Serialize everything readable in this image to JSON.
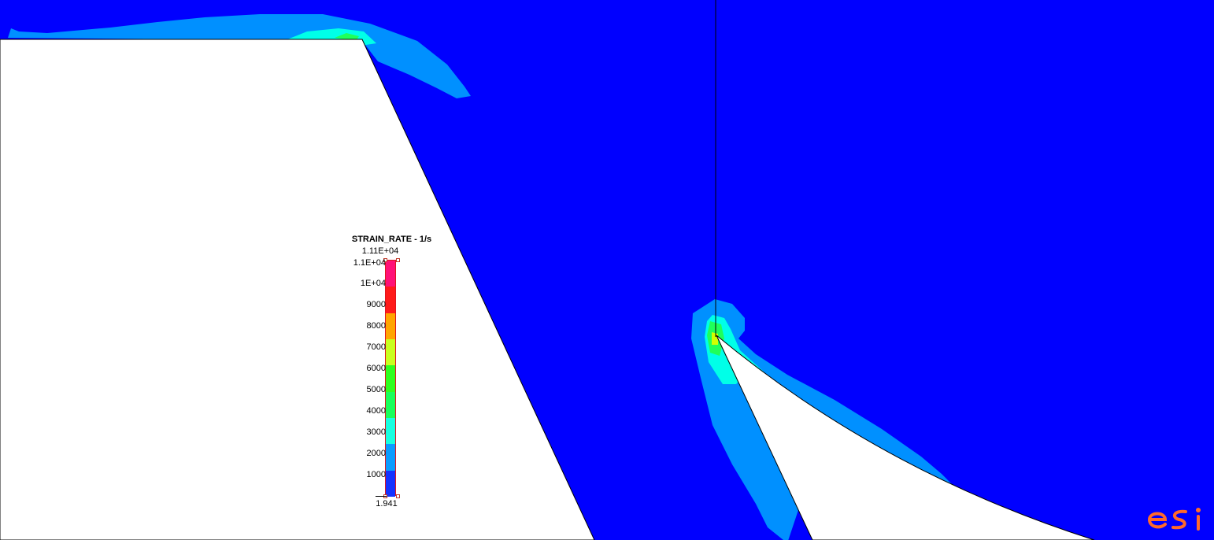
{
  "legend": {
    "title": "STRAIN_RATE - 1/s",
    "max_label_top": "1.11E+04",
    "min_label": "1.941",
    "ticks": [
      "1.1E+04",
      "1E+04",
      "9000",
      "8000",
      "7000",
      "6000",
      "5000",
      "4000",
      "3000",
      "2000",
      "1000"
    ],
    "bands": [
      "#ff1177",
      "#ff1a1a",
      "#ffa500",
      "#c8ff1e",
      "#2eff1e",
      "#18ff5a",
      "#18ffe0",
      "#0a9cff",
      "#1432ff"
    ]
  },
  "logo": {
    "text": "esi",
    "color": "#ff6a2a"
  },
  "colors": {
    "background_field": "#0000ff",
    "contour_light_blue": "#0090ff",
    "contour_cyan": "#00ffe8",
    "contour_green": "#1fff5a",
    "contour_yellow": "#d2ff00",
    "tool_white": "#ffffff"
  }
}
